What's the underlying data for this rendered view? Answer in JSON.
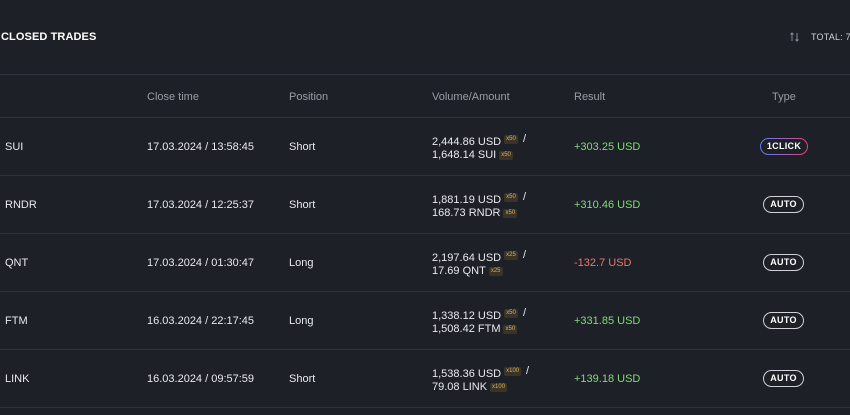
{
  "header": {
    "title": "CLOSED TRADES",
    "total_label": "TOTAL: 7"
  },
  "columns": {
    "close_time": "Close time",
    "position": "Position",
    "volume_amount": "Volume/Amount",
    "result": "Result",
    "type": "Type"
  },
  "rows": [
    {
      "symbol": "SUI",
      "close_time": "17.03.2024 / 13:58:45",
      "position": "Short",
      "volume_usd": "2,444.86 USD",
      "lev1": "x50",
      "amount": "1,648.14 SUI",
      "lev2": "x50",
      "result": "+303.25 USD",
      "result_sign": "positive",
      "type": "1CLICK"
    },
    {
      "symbol": "RNDR",
      "close_time": "17.03.2024 / 12:25:37",
      "position": "Short",
      "volume_usd": "1,881.19 USD",
      "lev1": "x50",
      "amount": "168.73 RNDR",
      "lev2": "x50",
      "result": "+310.46 USD",
      "result_sign": "positive",
      "type": "AUTO"
    },
    {
      "symbol": "QNT",
      "close_time": "17.03.2024 / 01:30:47",
      "position": "Long",
      "volume_usd": "2,197.64 USD",
      "lev1": "x25",
      "amount": "17.69 QNT",
      "lev2": "x25",
      "result": "-132.7 USD",
      "result_sign": "negative",
      "type": "AUTO"
    },
    {
      "symbol": "FTM",
      "close_time": "16.03.2024 / 22:17:45",
      "position": "Long",
      "volume_usd": "1,338.12 USD",
      "lev1": "x50",
      "amount": "1,508.42 FTM",
      "lev2": "x50",
      "result": "+331.85 USD",
      "result_sign": "positive",
      "type": "AUTO"
    },
    {
      "symbol": "LINK",
      "close_time": "16.03.2024 / 09:57:59",
      "position": "Short",
      "volume_usd": "1,538.36 USD",
      "lev1": "x100",
      "amount": "79.08 LINK",
      "lev2": "x100",
      "result": "+139.18 USD",
      "result_sign": "positive",
      "type": "AUTO"
    }
  ],
  "colors": {
    "positive": "#7ddc74",
    "negative": "#e9786a",
    "background": "#1e2028"
  }
}
